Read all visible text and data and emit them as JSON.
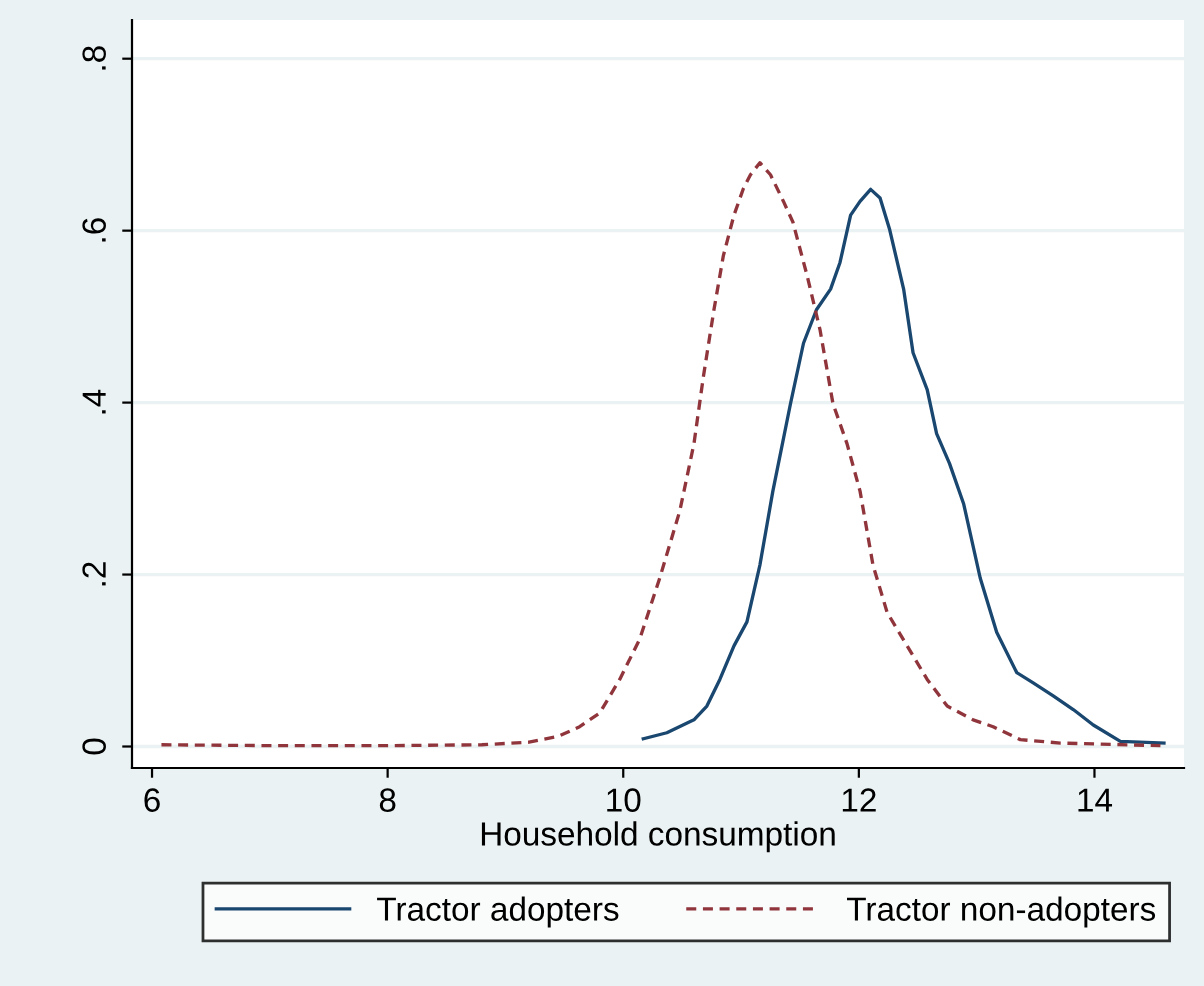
{
  "chart_data": {
    "type": "line",
    "xlabel": "Household consumption",
    "xlim": [
      5.83,
      14.76
    ],
    "ylim": [
      -0.025,
      0.845
    ],
    "xticks": [
      6,
      8,
      10,
      12,
      14
    ],
    "yticks": [
      {
        "value": 0,
        "label": "0"
      },
      {
        "value": 0.2,
        "label": ".2"
      },
      {
        "value": 0.4,
        "label": ".4"
      },
      {
        "value": 0.6,
        "label": ".6"
      },
      {
        "value": 0.8,
        "label": ".8"
      }
    ],
    "grid": "y",
    "legend": "bottom",
    "series": [
      {
        "name": "Tractor adopters",
        "color": "#1a476f",
        "line_style": "solid",
        "x": [
          10.17,
          10.37,
          10.6,
          10.71,
          10.82,
          10.94,
          11.05,
          11.16,
          11.27,
          11.42,
          11.53,
          11.64,
          11.76,
          11.84,
          11.93,
          12.01,
          12.1,
          12.18,
          12.26,
          12.38,
          12.46,
          12.58,
          12.66,
          12.77,
          12.89,
          13.03,
          13.17,
          13.34,
          13.48,
          13.65,
          13.82,
          13.99,
          14.22,
          14.59
        ],
        "values": [
          0.009,
          0.016,
          0.031,
          0.047,
          0.078,
          0.117,
          0.145,
          0.211,
          0.297,
          0.399,
          0.469,
          0.508,
          0.532,
          0.563,
          0.618,
          0.634,
          0.648,
          0.638,
          0.602,
          0.532,
          0.458,
          0.415,
          0.364,
          0.329,
          0.282,
          0.196,
          0.133,
          0.086,
          0.074,
          0.059,
          0.043,
          0.025,
          0.006,
          0.004
        ]
      },
      {
        "name": "Tractor non-adopters",
        "color": "#90353b",
        "line_style": "dashed",
        "x": [
          6.08,
          7.0,
          8.0,
          8.8,
          9.2,
          9.45,
          9.63,
          9.8,
          9.97,
          10.14,
          10.31,
          10.48,
          10.6,
          10.68,
          10.77,
          10.85,
          10.94,
          11.02,
          11.08,
          11.16,
          11.25,
          11.36,
          11.44,
          11.56,
          11.67,
          11.78,
          11.9,
          12.01,
          12.12,
          12.24,
          12.41,
          12.58,
          12.75,
          12.97,
          13.14,
          13.37,
          13.71,
          14.56
        ],
        "values": [
          0.002,
          0.001,
          0.001,
          0.002,
          0.005,
          0.012,
          0.023,
          0.039,
          0.078,
          0.125,
          0.196,
          0.274,
          0.352,
          0.43,
          0.508,
          0.571,
          0.618,
          0.649,
          0.665,
          0.679,
          0.665,
          0.634,
          0.61,
          0.548,
          0.485,
          0.399,
          0.352,
          0.297,
          0.211,
          0.156,
          0.117,
          0.078,
          0.047,
          0.031,
          0.023,
          0.008,
          0.004,
          0.001
        ]
      }
    ]
  }
}
